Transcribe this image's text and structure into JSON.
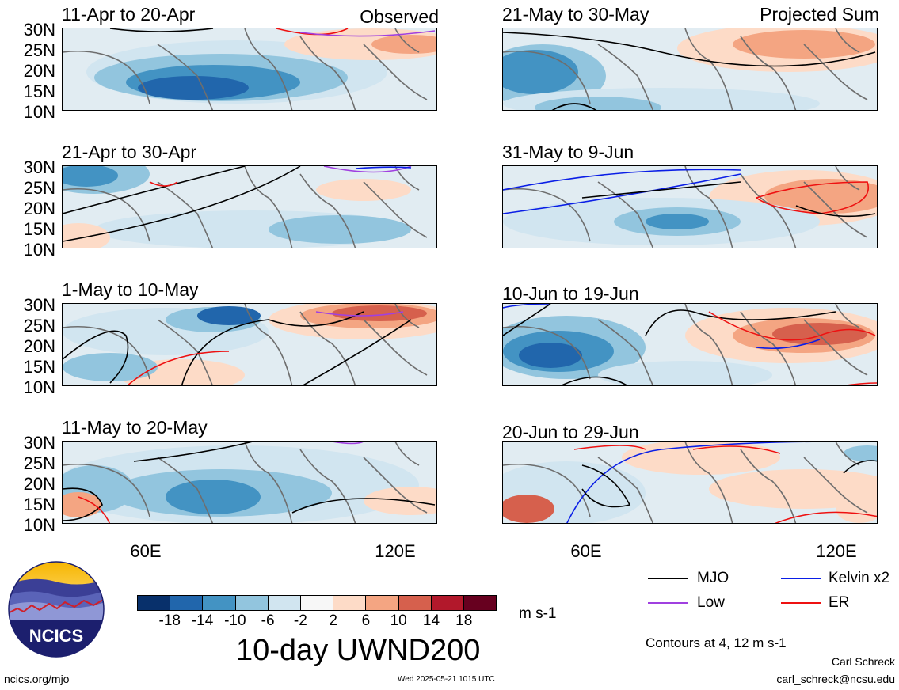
{
  "panels": [
    {
      "title": "11-Apr to 20-Apr",
      "tag": "Observed"
    },
    {
      "title": "21-Apr to 30-Apr",
      "tag": ""
    },
    {
      "title": "1-May to 10-May",
      "tag": ""
    },
    {
      "title": "11-May to 20-May",
      "tag": ""
    },
    {
      "title": "21-May to 30-May",
      "tag": "Projected Sum"
    },
    {
      "title": "31-May to 9-Jun",
      "tag": ""
    },
    {
      "title": "10-Jun to 19-Jun",
      "tag": ""
    },
    {
      "title": "20-Jun to 29-Jun",
      "tag": ""
    }
  ],
  "lat_labels": [
    "30N",
    "25N",
    "20N",
    "15N",
    "10N"
  ],
  "lon_labels": [
    "60E",
    "120E"
  ],
  "colorbar": {
    "labels": [
      "-18",
      "-14",
      "-10",
      "-6",
      "-2",
      "2",
      "6",
      "10",
      "14",
      "18"
    ],
    "colors": [
      "#08306b",
      "#2166ac",
      "#4393c3",
      "#92c5de",
      "#d1e5f0",
      "#f7f7f7",
      "#fddbc7",
      "#f4a582",
      "#d6604d",
      "#b2182b",
      "#67001f"
    ],
    "units": "m s-1"
  },
  "title": "10-day UWND200",
  "legend": [
    {
      "label": "MJO",
      "color": "#000000"
    },
    {
      "label": "Kelvin x2",
      "color": "#0a1ee6"
    },
    {
      "label": "Low",
      "color": "#a040e0"
    },
    {
      "label": "ER",
      "color": "#ee1111"
    }
  ],
  "contours_note": "Contours at 4, 12 m s-1",
  "logo_text": "NCICS",
  "author": "Carl Schreck",
  "email": "carl_schreck@ncsu.edu",
  "url": "ncics.org/mjo",
  "timestamp": "Wed 2025-05-21 1015 UTC"
}
